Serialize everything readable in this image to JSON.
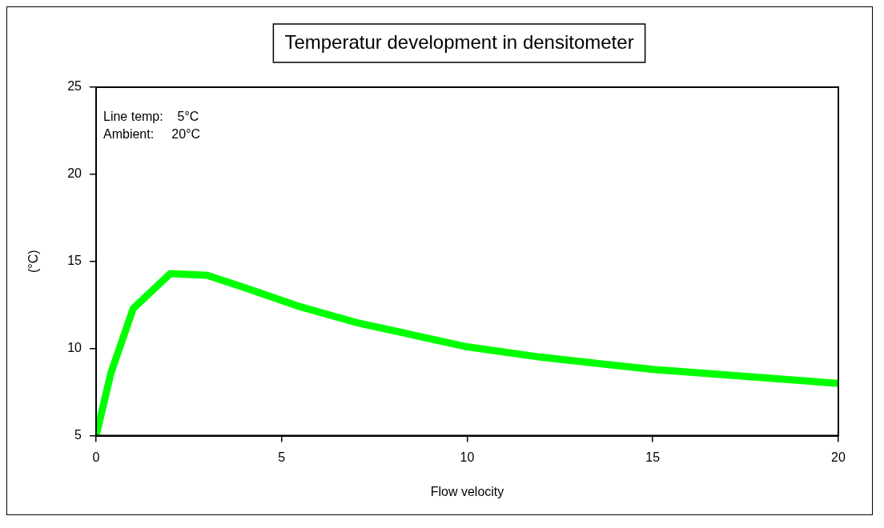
{
  "chart_data": {
    "type": "line",
    "title": "Temperatur development in densitometer",
    "xlabel": "Flow velocity",
    "ylabel": "(°C)",
    "annotations": [
      "Line temp:    5°C",
      "Ambient:     20°C"
    ],
    "x": [
      0,
      0.4,
      1,
      2,
      3,
      4,
      5.5,
      7,
      8.5,
      10,
      12,
      15,
      20
    ],
    "series": [
      {
        "color": "#00ff00",
        "values": [
          5,
          8.6,
          12.3,
          14.3,
          14.2,
          13.5,
          12.4,
          11.5,
          10.8,
          10.1,
          9.5,
          8.8,
          8.0
        ]
      }
    ],
    "xlim": [
      0,
      20
    ],
    "xticks": [
      0,
      5,
      10,
      15,
      20
    ],
    "ylim": [
      5,
      25
    ],
    "yticks": [
      5,
      10,
      15,
      20,
      25
    ],
    "grid": false,
    "legend": false,
    "marker": "none",
    "line_style": "solid"
  }
}
